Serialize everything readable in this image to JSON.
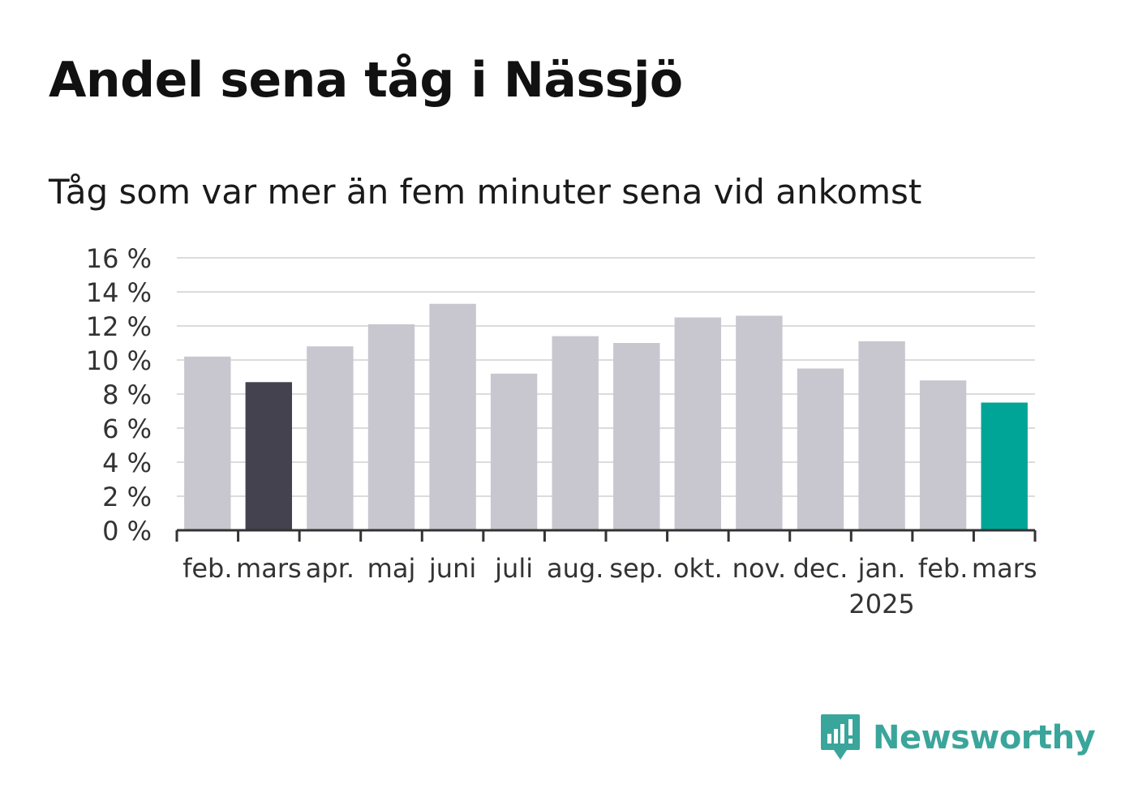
{
  "title": "Andel sena tåg i Nässjö",
  "subtitle": "Tåg som var mer än fem minuter sena vid ankomst",
  "brand": {
    "name": "Newsworthy",
    "icon": "newsworthy-logo-icon",
    "color": "#3aa59b"
  },
  "colors": {
    "default_bar": "#c8c7cf",
    "highlight_previous_year": "#43424e",
    "highlight_current": "#00a597",
    "grid": "#dcdcdc",
    "axis": "#333333"
  },
  "chart_data": {
    "type": "bar",
    "title": "Andel sena tåg i Nässjö",
    "subtitle": "Tåg som var mer än fem minuter sena vid ankomst",
    "xlabel": "",
    "ylabel": "",
    "categories": [
      "feb.",
      "mars",
      "apr.",
      "maj",
      "juni",
      "juli",
      "aug.",
      "sep.",
      "okt.",
      "nov.",
      "dec.",
      "jan.",
      "feb.",
      "mars"
    ],
    "year_labels": [
      "",
      "",
      "",
      "",
      "",
      "",
      "",
      "",
      "",
      "",
      "",
      "2025",
      "",
      ""
    ],
    "values": [
      10.2,
      8.7,
      10.8,
      12.1,
      13.3,
      9.2,
      11.4,
      11.0,
      12.5,
      12.6,
      9.5,
      11.1,
      8.8,
      7.5
    ],
    "bar_colors": [
      "#c8c7cf",
      "#43424e",
      "#c8c7cf",
      "#c8c7cf",
      "#c8c7cf",
      "#c8c7cf",
      "#c8c7cf",
      "#c8c7cf",
      "#c8c7cf",
      "#c8c7cf",
      "#c8c7cf",
      "#c8c7cf",
      "#c8c7cf",
      "#00a597"
    ],
    "ylim": [
      0,
      16
    ],
    "yticks": [
      0,
      2,
      4,
      6,
      8,
      10,
      12,
      14,
      16
    ],
    "ytick_labels": [
      "0 %",
      "2 %",
      "4 %",
      "6 %",
      "8 %",
      "10 %",
      "12 %",
      "14 %",
      "16 %"
    ],
    "grid": true,
    "legend": "none"
  }
}
